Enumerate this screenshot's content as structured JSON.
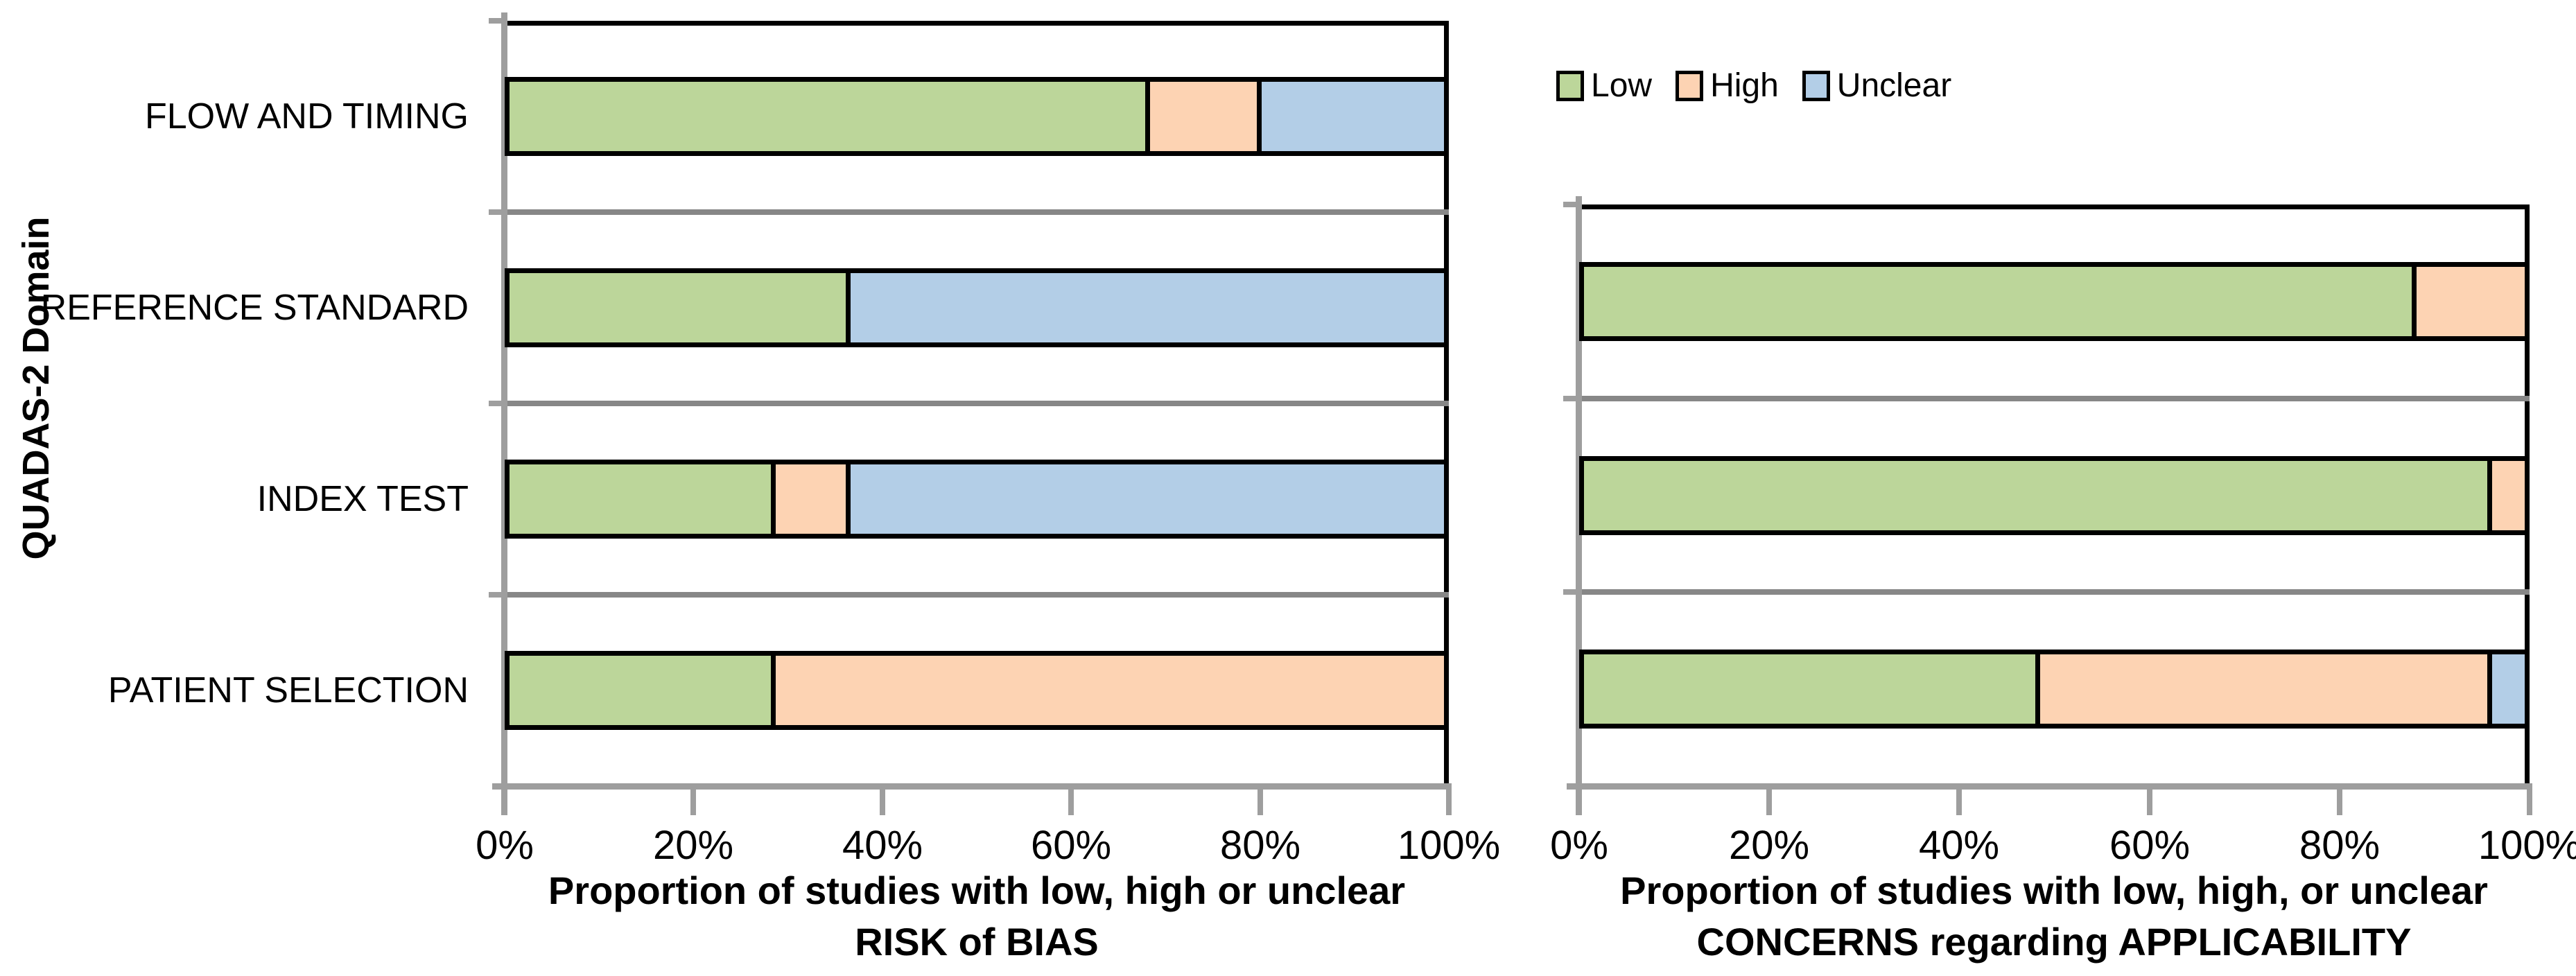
{
  "figure": {
    "y_axis_title": "QUADAS-2 Domain"
  },
  "legend": {
    "items": [
      {
        "label": "Low",
        "color": "#BCD69A"
      },
      {
        "label": "High",
        "color": "#FDD3B3"
      },
      {
        "label": "Unclear",
        "color": "#B3CEE7"
      }
    ]
  },
  "chart_data": [
    {
      "type": "bar",
      "orientation": "horizontal",
      "stacked": true,
      "units": "percent of studies",
      "ylabel": "QUADAS-2 Domain",
      "xlabel_line1": "Proportion of studies with low, high or unclear",
      "xlabel_line2": "RISK of BIAS",
      "categories": [
        "FLOW AND TIMING",
        "REFERENCE STANDARD",
        "INDEX TEST",
        "PATIENT SELECTION"
      ],
      "x_ticks": [
        "0%",
        "20%",
        "40%",
        "60%",
        "80%",
        "100%"
      ],
      "xlim": [
        0,
        100
      ],
      "grid": "category-separators",
      "legend_position": "top-right",
      "series": [
        {
          "name": "Low",
          "color": "#BCD69A",
          "values": [
            68,
            36,
            28,
            28
          ]
        },
        {
          "name": "High",
          "color": "#FDD3B3",
          "values": [
            12,
            0,
            8,
            72
          ]
        },
        {
          "name": "Unclear",
          "color": "#B3CEE7",
          "values": [
            20,
            64,
            64,
            0
          ]
        }
      ]
    },
    {
      "type": "bar",
      "orientation": "horizontal",
      "stacked": true,
      "units": "percent of studies",
      "xlabel_line1": "Proportion of studies with low, high, or unclear",
      "xlabel_line2": "CONCERNS regarding APPLICABILITY",
      "categories": [
        "REFERENCE STANDARD",
        "INDEX TEST",
        "PATIENT SELECTION"
      ],
      "x_ticks": [
        "0%",
        "20%",
        "40%",
        "60%",
        "80%",
        "100%"
      ],
      "xlim": [
        0,
        100
      ],
      "grid": "category-separators",
      "series": [
        {
          "name": "Low",
          "color": "#BCD69A",
          "values": [
            88,
            96,
            48
          ]
        },
        {
          "name": "High",
          "color": "#FDD3B3",
          "values": [
            12,
            4,
            48
          ]
        },
        {
          "name": "Unclear",
          "color": "#B3CEE7",
          "values": [
            0,
            0,
            4
          ]
        }
      ]
    }
  ]
}
